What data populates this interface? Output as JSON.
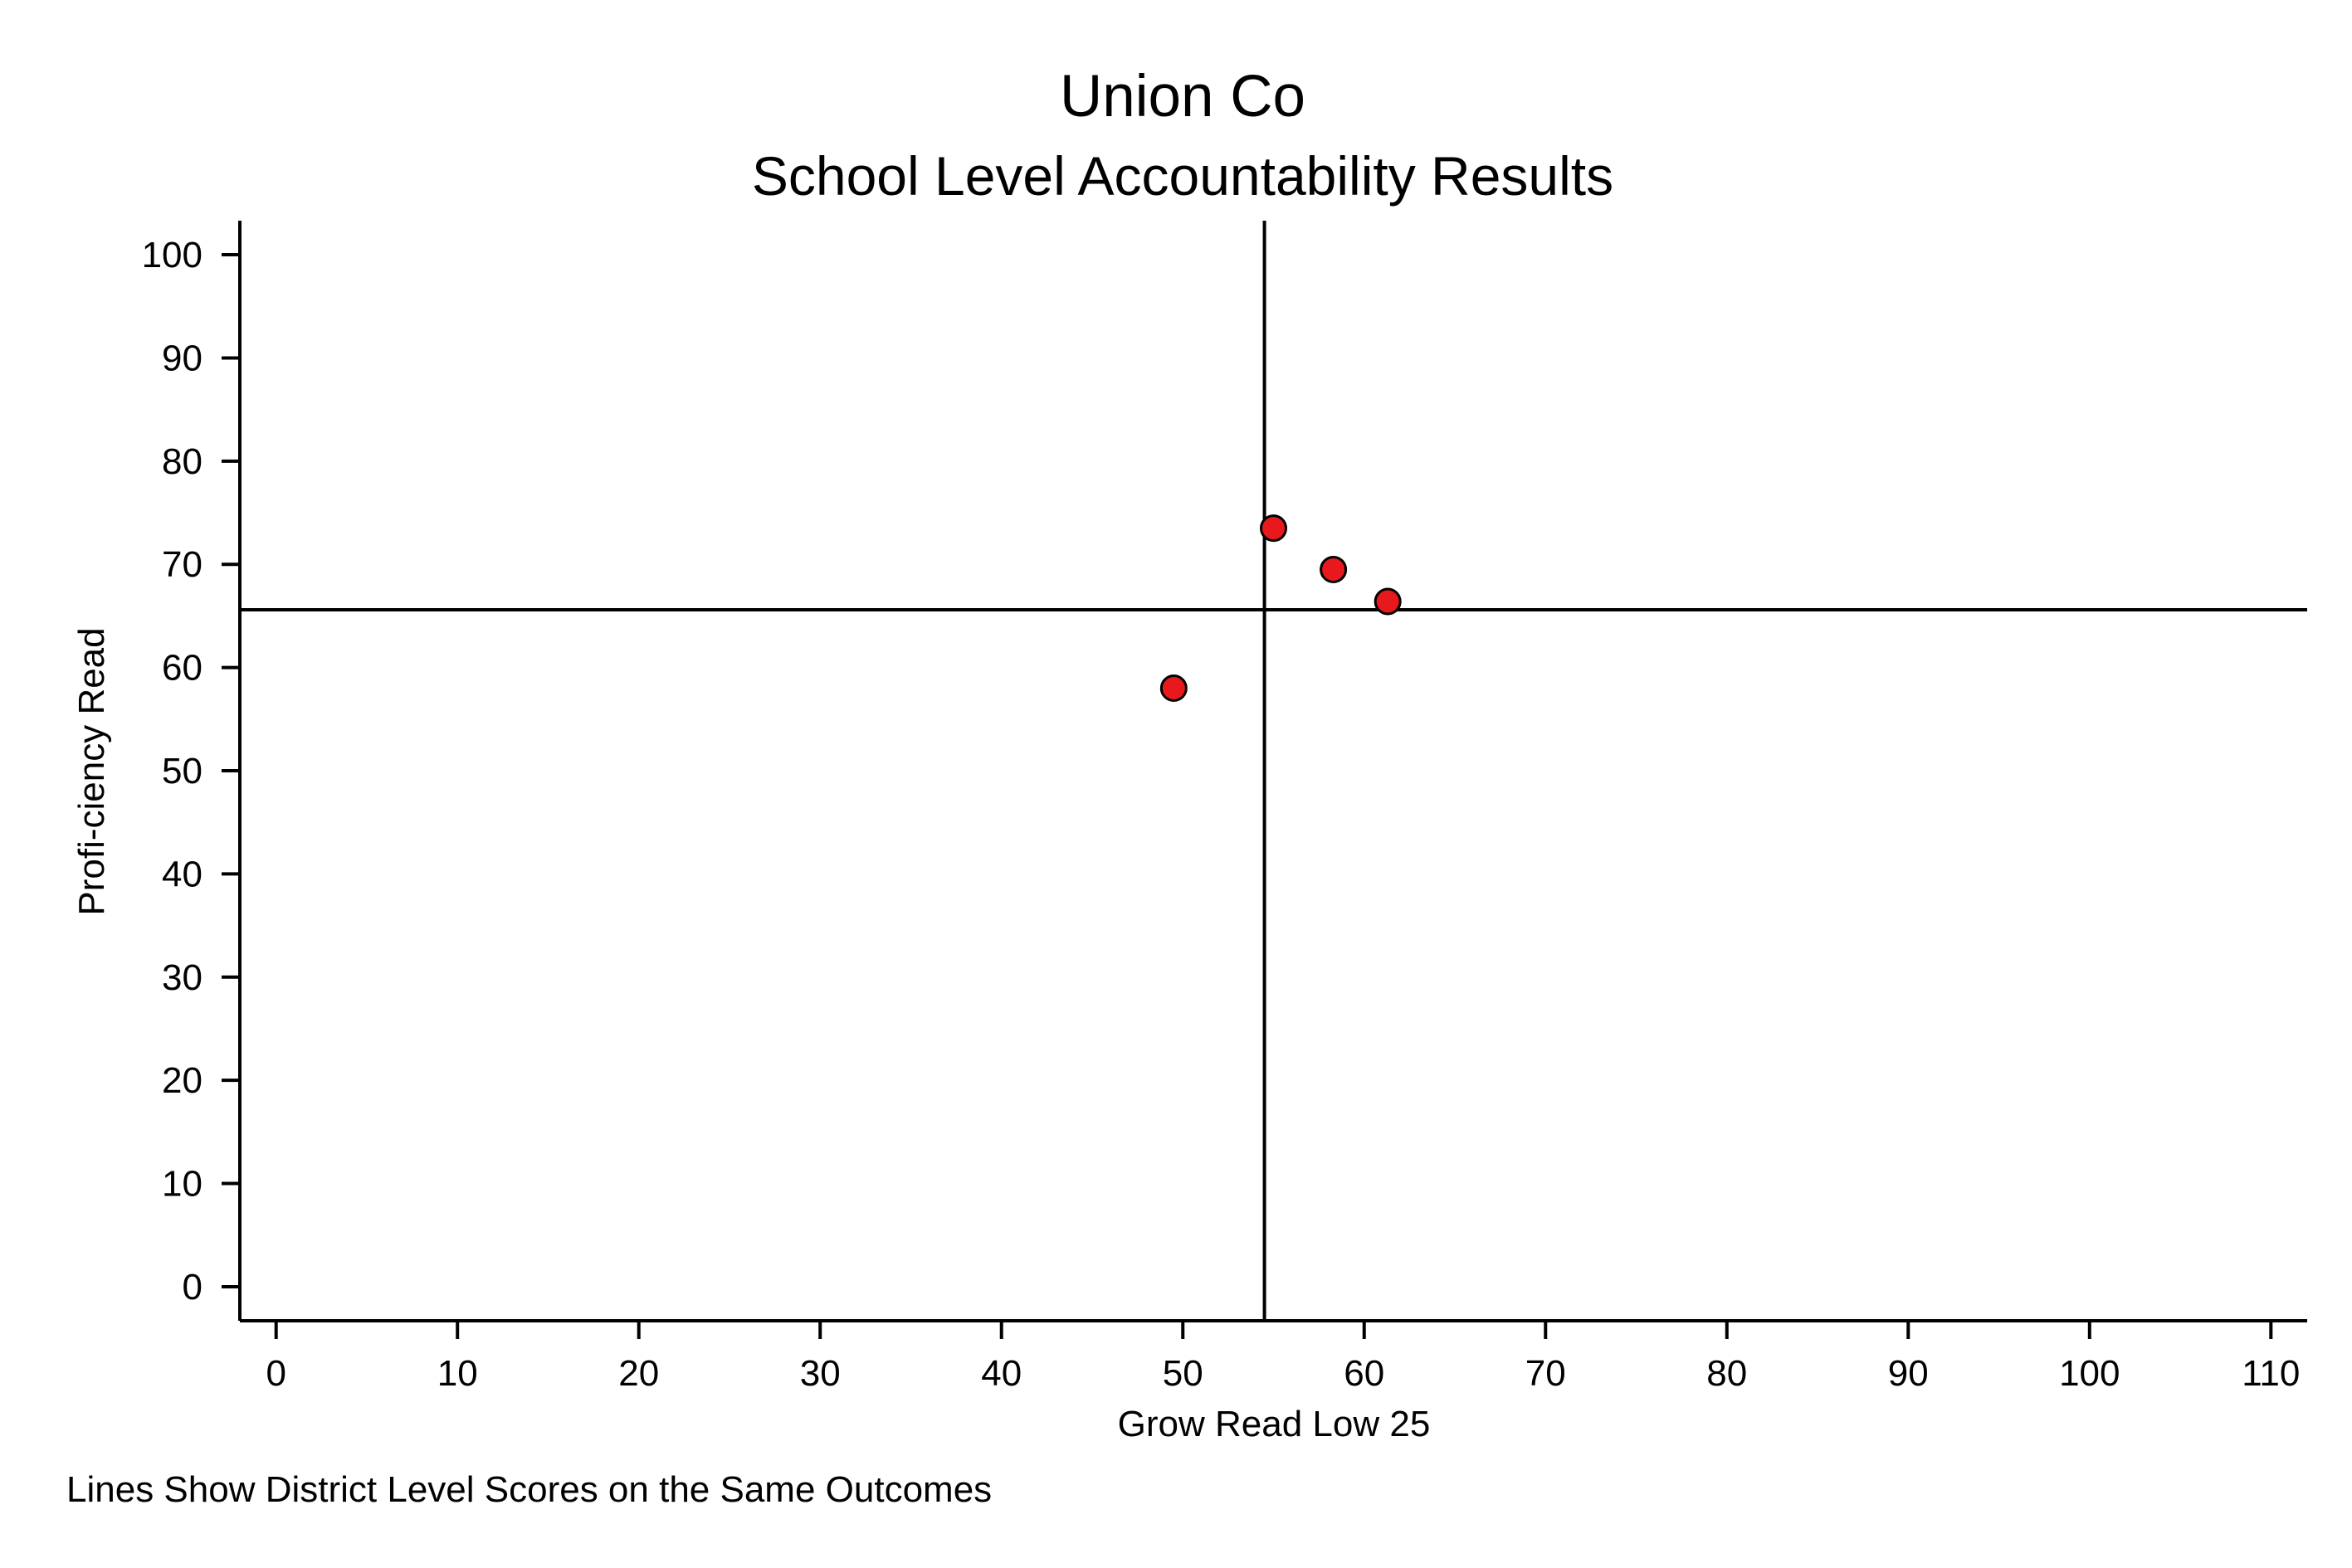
{
  "chart_data": {
    "type": "scatter",
    "title": "Union Co",
    "subtitle": "School Level Accountability Results",
    "xlabel": "Grow Read Low 25",
    "ylabel": "Profi-ciency Read",
    "note": "Lines Show District Level Scores on the Same Outcomes",
    "xlim": [
      -2,
      112
    ],
    "ylim": [
      -3.3,
      103.3
    ],
    "xticks": [
      0,
      10,
      20,
      30,
      40,
      50,
      60,
      70,
      80,
      90,
      100,
      110
    ],
    "yticks": [
      0,
      10,
      20,
      30,
      40,
      50,
      60,
      70,
      80,
      90,
      100
    ],
    "grid": false,
    "points": [
      {
        "x": 55.0,
        "y": 73.5
      },
      {
        "x": 58.3,
        "y": 69.5
      },
      {
        "x": 61.3,
        "y": 66.4
      },
      {
        "x": 49.5,
        "y": 58.0
      }
    ],
    "reference_lines": {
      "x": 54.5,
      "y": 65.6
    },
    "colors": {
      "marker_fill": "#e8191c",
      "marker_stroke": "#000000",
      "axis": "#000000"
    }
  }
}
